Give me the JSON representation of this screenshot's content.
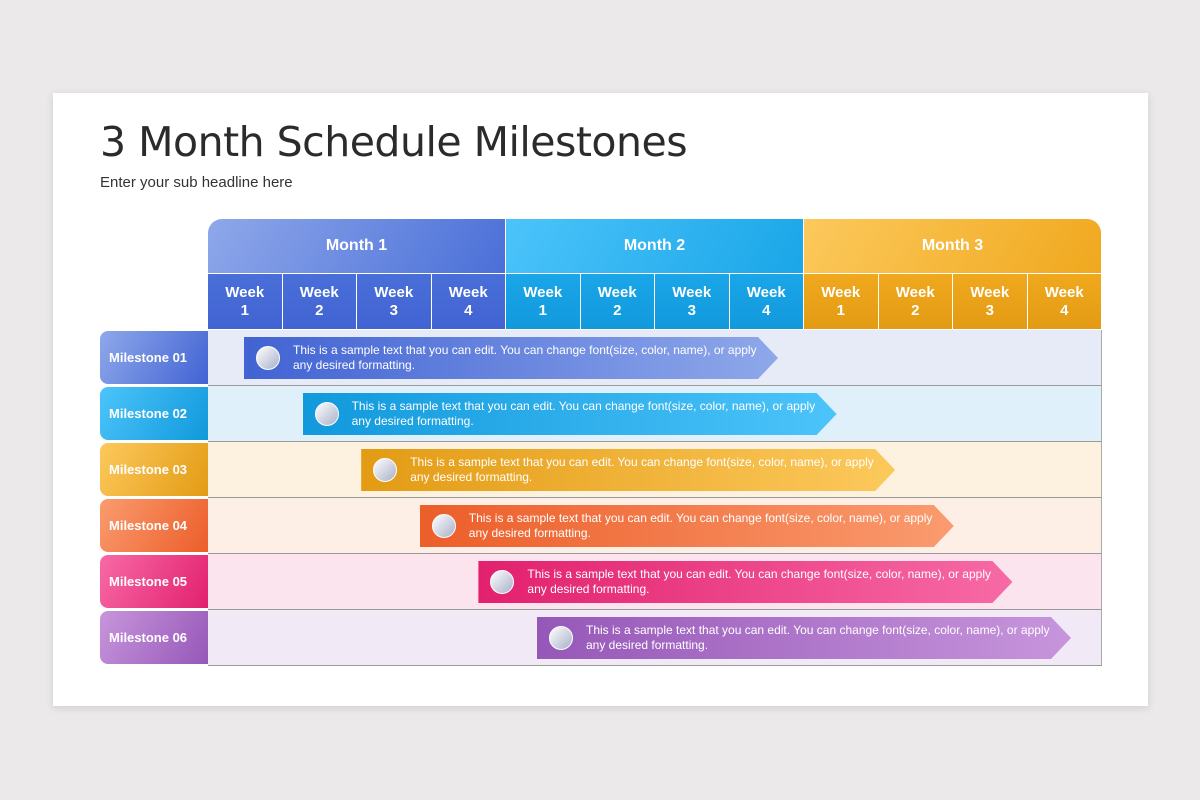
{
  "title": "3 Month Schedule Milestones",
  "subtitle": "Enter your sub headline here",
  "months": [
    {
      "label": "Month 1",
      "color": "#4a6fd8"
    },
    {
      "label": "Month 2",
      "color": "#1aa6e8"
    },
    {
      "label": "Month 3",
      "color": "#f0a81e"
    }
  ],
  "weeks": [
    {
      "word": "Week",
      "num": "1"
    },
    {
      "word": "Week",
      "num": "2"
    },
    {
      "word": "Week",
      "num": "3"
    },
    {
      "word": "Week",
      "num": "4"
    }
  ],
  "milestones": [
    {
      "label": "Milestone 01",
      "text": "This is a sample text that you can edit. You can change font(size, color, name), or apply any desired formatting.",
      "color": "#4163d3",
      "light": "#8fa8ea",
      "bg": "#e6ebf7"
    },
    {
      "label": "Milestone 02",
      "text": "This is a sample text that you can edit. You can change font(size, color, name), or apply any desired formatting.",
      "color": "#1199dc",
      "light": "#4cc4fa",
      "bg": "#dff0fb"
    },
    {
      "label": "Milestone 03",
      "text": "This is a sample text that you can edit. You can change font(size, color, name), or apply any desired formatting.",
      "color": "#e39b14",
      "light": "#fcc95c",
      "bg": "#fdf2e0"
    },
    {
      "label": "Milestone 04",
      "text": "This is a sample text that you can edit. You can change font(size, color, name), or apply any desired formatting.",
      "color": "#ec5e2a",
      "light": "#fa9b6f",
      "bg": "#fdeee6"
    },
    {
      "label": "Milestone 05",
      "text": "This is a sample text that you can edit. You can change font(size, color, name), or apply any desired formatting.",
      "color": "#e2206e",
      "light": "#f76aa5",
      "bg": "#fbe4ee"
    },
    {
      "label": "Milestone 06",
      "text": "This is a sample text that you can edit. You can change font(size, color, name), or apply any desired formatting.",
      "color": "#9658b8",
      "light": "#c795dc",
      "bg": "#f1eaf6"
    }
  ]
}
